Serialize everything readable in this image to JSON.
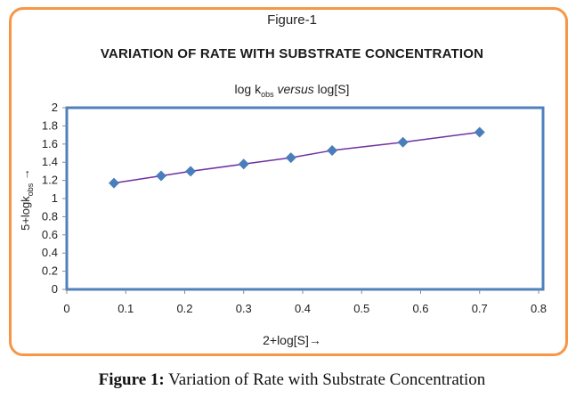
{
  "figure_label": "Figure-1",
  "caption": {
    "bold": "Figure 1:",
    "text": " Variation of Rate with Substrate Concentration"
  },
  "chart_data": {
    "type": "scatter",
    "title": "VARIATION OF RATE WITH SUBSTRATE CONCENTRATION",
    "subtitle": {
      "pre": "log k",
      "sub": "obs",
      "italic": " versus ",
      "post": "log[S]"
    },
    "xlabel": "2+log[S]→",
    "ylabel": {
      "pre": "5+logk",
      "sub": "obs",
      "post": " →"
    },
    "xlim": [
      0,
      0.8
    ],
    "ylim": [
      0,
      2
    ],
    "xticks": [
      0,
      0.1,
      0.2,
      0.3,
      0.4,
      0.5,
      0.6,
      0.7,
      0.8
    ],
    "xtick_labels": [
      "0",
      "0.1",
      "0.2",
      "0.3",
      "0.4",
      "0.5",
      "0.6",
      "0.7",
      "0.8"
    ],
    "yticks": [
      0,
      0.2,
      0.4,
      0.6,
      0.8,
      1,
      1.2,
      1.4,
      1.6,
      1.8,
      2
    ],
    "ytick_labels": [
      "0",
      "0.2",
      "0.4",
      "0.6",
      "0.8",
      "1",
      "1.2",
      "1.4",
      "1.6",
      "1.8",
      "2"
    ],
    "grid": false,
    "legend": "none",
    "series": [
      {
        "name": "5+logkobs",
        "marker": "diamond",
        "marker_color": "#4a7ebb",
        "line_color": "#7030a0",
        "x": [
          0.08,
          0.16,
          0.21,
          0.3,
          0.38,
          0.45,
          0.57,
          0.7
        ],
        "y": [
          1.17,
          1.25,
          1.3,
          1.38,
          1.45,
          1.53,
          1.62,
          1.73
        ]
      }
    ],
    "plot_border_color": "#4f81bd",
    "frame_color": "#f79646"
  }
}
